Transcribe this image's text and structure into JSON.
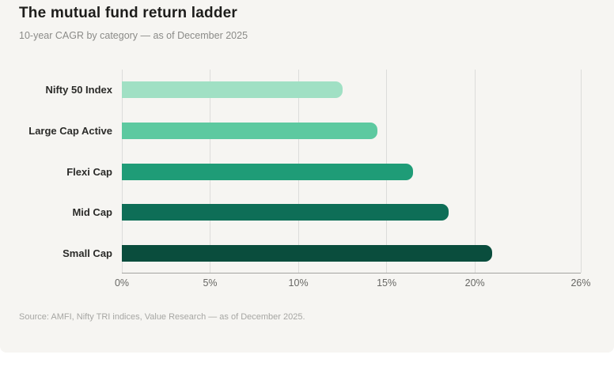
{
  "header": {
    "title": "The mutual fund return ladder",
    "subtitle": "10-year CAGR by category — as of December 2025"
  },
  "source_note": "Source: AMFI, Nifty TRI indices, Value Research — as of December 2025.",
  "colors": {
    "page_bg": "#ffffff",
    "card_bg": "#f6f5f2",
    "gridline": "#dcdcda",
    "axis_line": "#a3a3a0",
    "title_text": "#1d1d1b",
    "subtitle_text": "#8b8b88",
    "category_text": "#2b2b29",
    "tick_text": "#676764",
    "source_text": "#a6a6a3",
    "bar_palette": [
      "#a0e0c4",
      "#5dc9a0",
      "#1f9c77",
      "#0e6e57",
      "#0a4d3d"
    ]
  },
  "chart_data": {
    "type": "bar",
    "orientation": "horizontal",
    "title": "The mutual fund return ladder",
    "subtitle": "10-year CAGR by category — as of December 2025",
    "categories": [
      "Nifty 50 Index",
      "Large Cap Active",
      "Flexi Cap",
      "Mid Cap",
      "Small Cap"
    ],
    "values": [
      12.5,
      14.5,
      16.5,
      18.5,
      21.0
    ],
    "unit": "%",
    "xlabel": "",
    "ylabel": "",
    "xlim": [
      0,
      26
    ],
    "xticks": [
      0,
      5,
      10,
      15,
      20,
      26
    ],
    "xtick_labels": [
      "0%",
      "5%",
      "10%",
      "15%",
      "20%",
      "26%"
    ],
    "grid": "vertical",
    "legend": "none",
    "bar_order": "lightest-to-darkest top-to-bottom"
  }
}
